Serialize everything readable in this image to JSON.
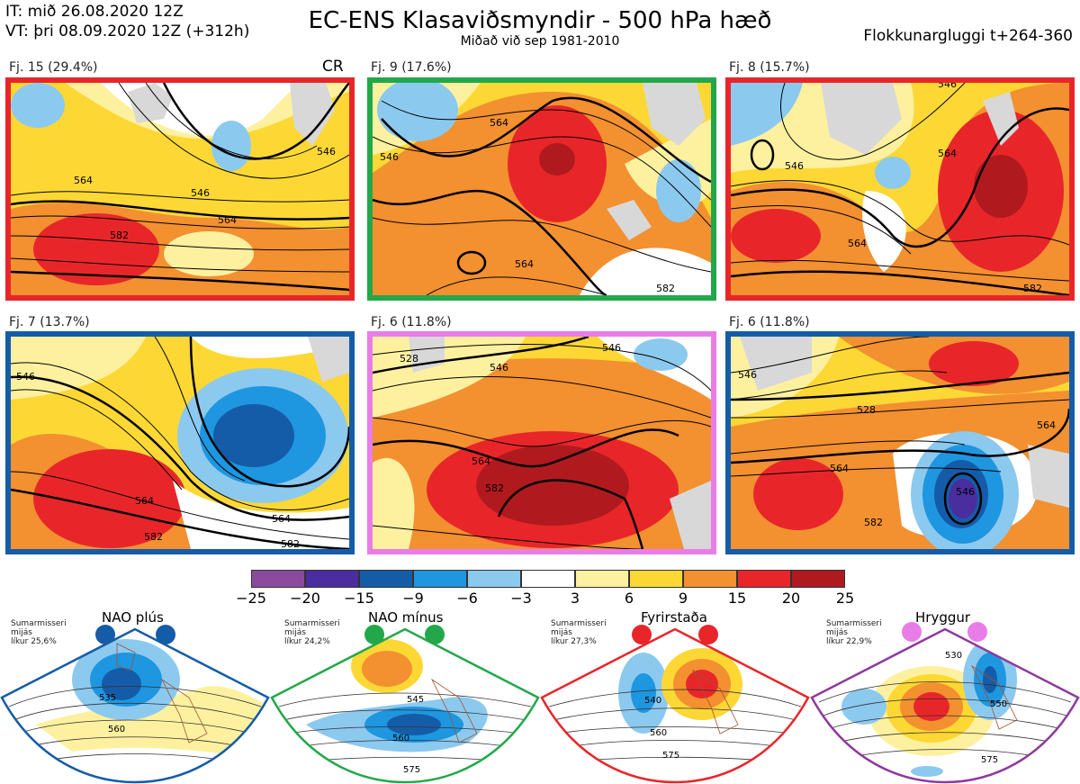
{
  "header": {
    "it": "IT: mið 26.08.2020 12Z",
    "vt": "VT: þri 08.09.2020 12Z  (+312h)",
    "title": "EC-ENS Klasaviðsmyndir - 500 hPa hæð",
    "subtitle": "Miðað við sep 1981-2010",
    "window": "Flokkunargluggi t+264-360"
  },
  "panels": [
    {
      "label": "Fj. 15 (29.4%)",
      "extra": "CR",
      "border": "#e8262a",
      "contours": [
        "546",
        "564",
        "582",
        "564",
        "546"
      ]
    },
    {
      "label": "Fj. 9 (17.6%)",
      "border": "#22a84a",
      "contours": [
        "564",
        "546",
        "564",
        "582"
      ]
    },
    {
      "label": "Fj. 8 (15.7%)",
      "border": "#e8262a",
      "contours": [
        "546",
        "564",
        "546",
        "564",
        "582"
      ]
    },
    {
      "label": "Fj. 7 (13.7%)",
      "border": "#155ca8",
      "contours": [
        "546",
        "564",
        "582",
        "564",
        "582"
      ]
    },
    {
      "label": "Fj. 6 (11.8%)",
      "border": "#e97de8",
      "contours": [
        "528",
        "546",
        "564",
        "582",
        "546"
      ]
    },
    {
      "label": "Fj. 6 (11.8%)",
      "border": "#155ca8",
      "contours": [
        "528",
        "546",
        "564",
        "582",
        "564",
        "546"
      ]
    }
  ],
  "colorbar": {
    "ticks": [
      "−25",
      "−20",
      "−15",
      "−9",
      "−6",
      "−3",
      "3",
      "6",
      "9",
      "15",
      "20",
      "25"
    ],
    "colors": [
      "#8b4a9e",
      "#4a2d9e",
      "#155ca8",
      "#1e96e0",
      "#8cc9ef",
      "#ffffff",
      "#fdf1a0",
      "#fdd835",
      "#f39030",
      "#e8262a",
      "#b01a1e"
    ]
  },
  "regimes": [
    {
      "name": "NAO plús",
      "info": [
        "Sumarmisseri",
        "mijás",
        "líkur 25,6%"
      ],
      "color": "#155ca8",
      "contours": [
        "535",
        "560"
      ]
    },
    {
      "name": "NAO mínus",
      "info": [
        "Sumarmisseri",
        "mijás",
        "líkur 24,2%"
      ],
      "color": "#22a84a",
      "contours": [
        "545",
        "560",
        "575"
      ]
    },
    {
      "name": "Fyrirstaða",
      "info": [
        "Sumarmisseri",
        "mijás",
        "líkur 27,3%"
      ],
      "color": "#e8262a",
      "contours": [
        "540",
        "560",
        "575"
      ]
    },
    {
      "name": "Hryggur",
      "info": [
        "Sumarmisseri",
        "mijás",
        "líkur 22,9%"
      ],
      "color": "#e97de8",
      "frame": "#8e3a9e",
      "contours": [
        "530",
        "550",
        "575"
      ]
    }
  ]
}
